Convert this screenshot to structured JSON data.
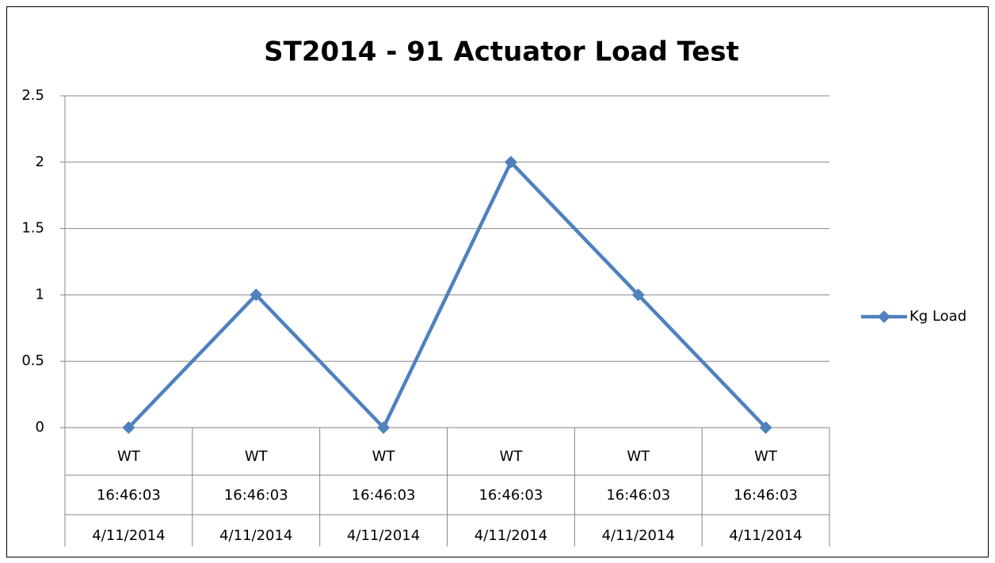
{
  "chart_data": {
    "type": "line",
    "title": "ST2014 - 91 Actuator Load Test",
    "categories": [
      [
        "WT",
        "16:46:03",
        "4/11/2014"
      ],
      [
        "WT",
        "16:46:03",
        "4/11/2014"
      ],
      [
        "WT",
        "16:46:03",
        "4/11/2014"
      ],
      [
        "WT",
        "16:46:03",
        "4/11/2014"
      ],
      [
        "WT",
        "16:46:03",
        "4/11/2014"
      ],
      [
        "WT",
        "16:46:03",
        "4/11/2014"
      ]
    ],
    "series": [
      {
        "name": "Kg Load",
        "color": "#4f81bd",
        "values": [
          0,
          1,
          0,
          2,
          1,
          0
        ]
      }
    ],
    "ylim": [
      0,
      2.5
    ],
    "yticks": [
      0,
      0.5,
      1,
      1.5,
      2,
      2.5
    ],
    "grid": true,
    "legend": "right"
  }
}
